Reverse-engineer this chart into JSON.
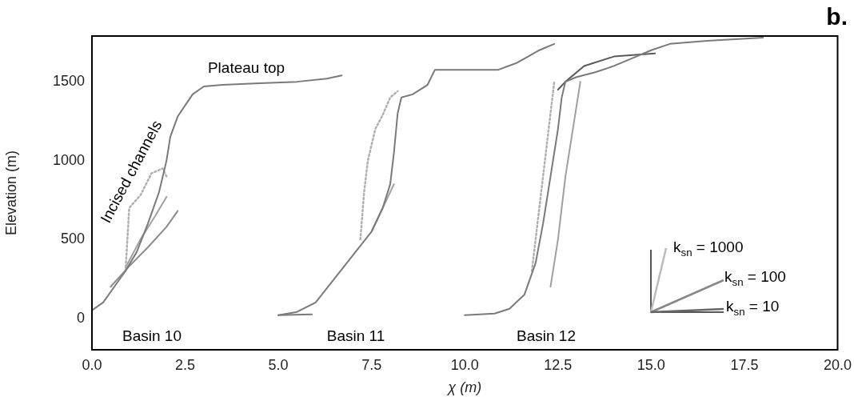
{
  "chart_data": {
    "type": "line",
    "title": "b.",
    "xlabel": "χ (m)",
    "ylabel": "Elevation (m)",
    "xlim": [
      0,
      20
    ],
    "ylim": [
      -200,
      1790
    ],
    "xticks": [
      {
        "value": 0,
        "label": "0.0"
      },
      2.5,
      {
        "value": 5,
        "label": "5.0"
      },
      7.5,
      {
        "value": 10,
        "label": "10.0"
      },
      12.5,
      {
        "value": 15,
        "label": "15.0"
      },
      17.5,
      {
        "value": 20,
        "label": "20.0"
      }
    ],
    "yticks": [
      0,
      500,
      1000,
      1500
    ],
    "grid": false,
    "legend": false,
    "marker": "none",
    "series": [
      {
        "color": "#7a7a7a",
        "x": [
          0,
          0.3,
          0.6,
          0.9,
          1.2,
          1.5,
          1.8,
          2.0,
          2.1,
          2.3,
          2.5,
          2.7,
          3.0,
          3.5,
          4.5,
          5.5,
          6.3,
          6.7
        ],
        "values": [
          50,
          100,
          200,
          300,
          420,
          600,
          800,
          1000,
          1150,
          1280,
          1350,
          1420,
          1470,
          1480,
          1490,
          1500,
          1520,
          1540
        ]
      },
      {
        "color": "#b0b0b0",
        "line_style": "dotted",
        "x": [
          0.9,
          0.95,
          1.0,
          1.3,
          1.6,
          1.9,
          2.0
        ],
        "values": [
          300,
          500,
          700,
          780,
          920,
          950,
          900
        ]
      },
      {
        "color": "#a0a0a0",
        "x": [
          0.9,
          1.3,
          1.7,
          2.0
        ],
        "values": [
          320,
          500,
          650,
          770
        ]
      },
      {
        "color": "#8c8c8c",
        "x": [
          0.5,
          1.0,
          1.5,
          2.0,
          2.3
        ],
        "values": [
          200,
          330,
          450,
          580,
          680
        ]
      },
      {
        "color": "#7a7a7a",
        "x": [
          5.0,
          5.5,
          6.0,
          6.5,
          7.0,
          7.5,
          7.8,
          8.0,
          8.1,
          8.2,
          8.3,
          8.6,
          9.0,
          9.2,
          10.9,
          11.4,
          11.7,
          12.0,
          12.4
        ],
        "values": [
          20,
          40,
          100,
          250,
          400,
          550,
          700,
          850,
          1050,
          1300,
          1400,
          1420,
          1480,
          1576,
          1576,
          1620,
          1660,
          1700,
          1740
        ]
      },
      {
        "color": "#7a7a7a",
        "x": [
          5.0,
          5.9
        ],
        "values": [
          20,
          25
        ]
      },
      {
        "color": "#b0b0b0",
        "line_style": "dotted",
        "x": [
          7.2,
          7.3,
          7.4,
          7.6,
          7.8,
          8.0,
          8.2
        ],
        "values": [
          500,
          800,
          1000,
          1200,
          1290,
          1400,
          1440
        ]
      },
      {
        "color": "#a0a0a0",
        "x": [
          7.5,
          7.8,
          8.1
        ],
        "values": [
          550,
          700,
          850
        ]
      },
      {
        "color": "#7a7a7a",
        "x": [
          10.0,
          10.8,
          11.2,
          11.6,
          11.9,
          12.1,
          12.3,
          12.5,
          12.6,
          12.7,
          13.0,
          13.5,
          14.0,
          14.5,
          15.0,
          15.5,
          16.5,
          18.0
        ],
        "values": [
          20,
          30,
          60,
          150,
          350,
          600,
          900,
          1200,
          1400,
          1500,
          1530,
          1560,
          1600,
          1650,
          1700,
          1740,
          1760,
          1780
        ]
      },
      {
        "color": "#5a5a5a",
        "x": [
          12.5,
          12.7,
          13.2,
          14.0,
          15.1
        ],
        "values": [
          1450,
          1500,
          1600,
          1660,
          1680
        ]
      },
      {
        "color": "#b0b0b0",
        "line_style": "dotted",
        "x": [
          11.8,
          12.0,
          12.2,
          12.3,
          12.4
        ],
        "values": [
          300,
          700,
          1100,
          1300,
          1500
        ]
      },
      {
        "color": "#a0a0a0",
        "x": [
          12.3,
          12.5,
          12.7,
          12.9,
          13.1
        ],
        "values": [
          200,
          500,
          900,
          1200,
          1500
        ]
      }
    ],
    "annotations": [
      "Plateau top",
      "Incised channels",
      "Basin 10",
      "Basin 11",
      "Basin 12",
      "k$_{sn}$ = 1000",
      "k$_{sn}$ = 100",
      "k$_{sn}$ = 10"
    ]
  }
}
